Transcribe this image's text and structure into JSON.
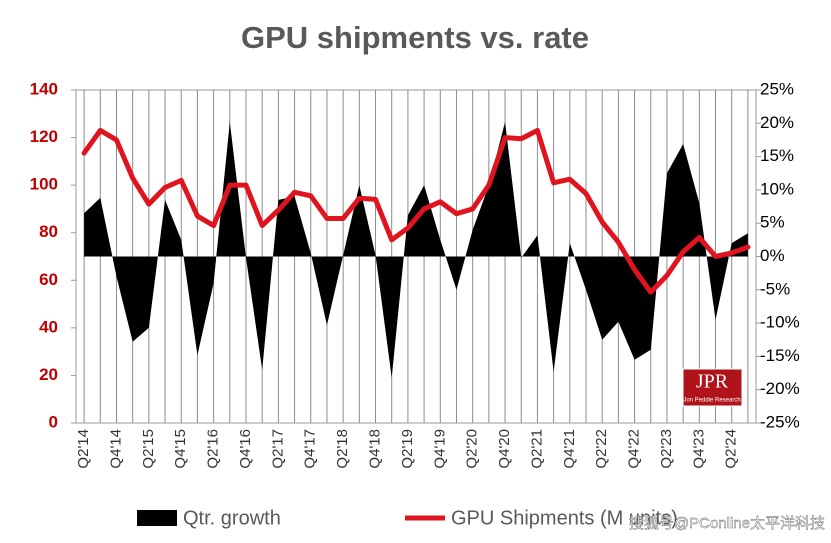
{
  "chart_data": {
    "type": "line",
    "title": "GPU shipments vs. rate",
    "categories": [
      "Q2'14",
      null,
      "Q4'14",
      null,
      "Q2'15",
      null,
      "Q4'15",
      null,
      "Q2'16",
      null,
      "Q4'16",
      null,
      "Q2'17",
      null,
      "Q4'17",
      null,
      "Q2'18",
      null,
      "Q4'18",
      null,
      "Q2'19",
      null,
      "Q4'19",
      null,
      "Q2'20",
      null,
      "Q4'20",
      null,
      "Q2'21",
      null,
      "Q4'21",
      null,
      "Q2'22",
      null,
      "Q4'22",
      null,
      "Q2'23",
      null,
      "Q4'23",
      null,
      "Q2'24",
      null
    ],
    "series": [
      {
        "name": "Qtr. growth",
        "type": "area",
        "color": "#000000",
        "axis": "y2",
        "values": [
          6.5,
          8.8,
          -3,
          -12.8,
          -10.7,
          8.5,
          2.5,
          -14.8,
          -4,
          20.2,
          -0.2,
          -17,
          8.5,
          9,
          0.5,
          -10.3,
          0.2,
          10.7,
          0.2,
          -18.2,
          6.2,
          10.7,
          2.5,
          -5,
          4,
          10.7,
          20.2,
          -0.2,
          3.2,
          -17.3,
          2,
          -5,
          -12.5,
          -9.8,
          -15.5,
          -14,
          12.5,
          16.9,
          8,
          -9.5,
          2,
          3.5
        ]
      },
      {
        "name": "GPU Shipments (M units)",
        "type": "line",
        "color": "#e0141e",
        "values": [
          113.5,
          123,
          119,
          103,
          92,
          99,
          102,
          87,
          83,
          100,
          100,
          83,
          89.5,
          97,
          95.5,
          86,
          86,
          94.5,
          94,
          77,
          82,
          90,
          93,
          88,
          90,
          100,
          120,
          119.5,
          123,
          101,
          102.5,
          96.5,
          84.5,
          76,
          64.5,
          55,
          62,
          72,
          78,
          70,
          71.5,
          74
        ]
      }
    ],
    "ylim": [
      0,
      140
    ],
    "yticks": [
      0,
      20,
      40,
      60,
      80,
      100,
      120,
      140
    ],
    "y2lim": [
      -25,
      25
    ],
    "y2ticks": [
      {
        "value": -25,
        "label": "-25%"
      },
      {
        "value": -20,
        "label": "-20%"
      },
      {
        "value": -15,
        "label": "-15%"
      },
      {
        "value": -10,
        "label": "-10%"
      },
      {
        "value": -5,
        "label": "-5%"
      },
      {
        "value": 0,
        "label": "0%"
      },
      {
        "value": 5,
        "label": "5%"
      },
      {
        "value": 10,
        "label": "10%"
      },
      {
        "value": 15,
        "label": "15%"
      },
      {
        "value": 20,
        "label": "20%"
      },
      {
        "value": 25,
        "label": "25%"
      }
    ],
    "grid": true,
    "legend": "bottom",
    "logo": {
      "text": "JPR",
      "subtitle": "Jon Peddie Research"
    },
    "watermark": "搜狐号@PConline太平洋科技"
  }
}
